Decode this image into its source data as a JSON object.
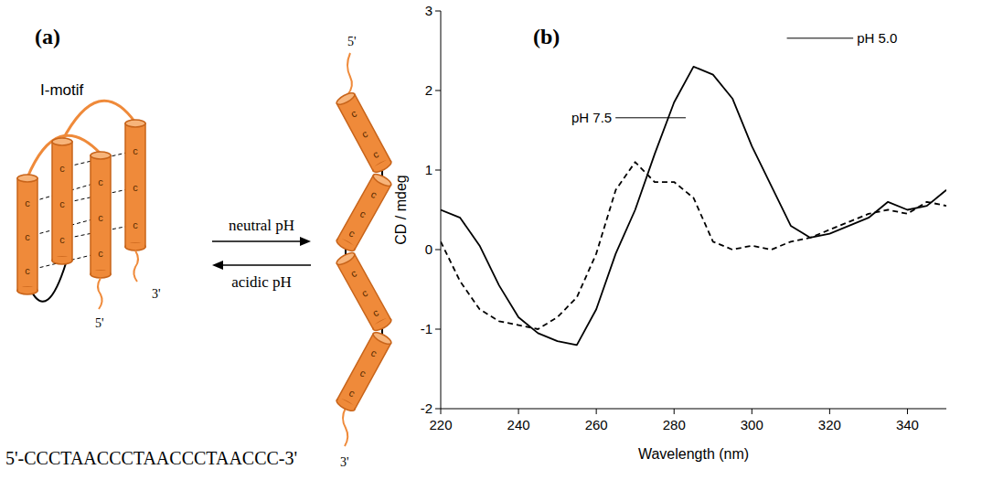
{
  "diagram": {
    "panel_label": "(a)",
    "title": "I-motif",
    "forward": "neutral pH",
    "backward": "acidic pH",
    "sequence": "5'-CCCTAACCCTAACCCTAACCC-3'",
    "base": "c",
    "five_prime": "5'",
    "three_prime": "3'"
  },
  "chart_data": {
    "panel_label": "(b)",
    "type": "line",
    "x_label": "Wavelength (nm)",
    "y_label": "CD / mdeg",
    "x": [
      220,
      225,
      230,
      235,
      240,
      245,
      250,
      255,
      260,
      265,
      270,
      275,
      280,
      285,
      290,
      295,
      300,
      305,
      310,
      315,
      320,
      325,
      330,
      335,
      340,
      345,
      350
    ],
    "series": [
      {
        "name": "pH 5.0",
        "color": "#000000",
        "line_style": "solid",
        "values": [
          0.5,
          0.4,
          0.05,
          -0.45,
          -0.85,
          -1.05,
          -1.15,
          -1.2,
          -0.75,
          -0.05,
          0.5,
          1.2,
          1.85,
          2.3,
          2.2,
          1.9,
          1.3,
          0.8,
          0.3,
          0.15,
          0.2,
          0.3,
          0.4,
          0.6,
          0.5,
          0.55,
          0.75
        ]
      },
      {
        "name": "pH 7.5",
        "color": "#000000",
        "line_style": "dashed",
        "values": [
          0.1,
          -0.4,
          -0.75,
          -0.9,
          -0.95,
          -1.0,
          -0.85,
          -0.6,
          -0.05,
          0.75,
          1.1,
          0.85,
          0.85,
          0.65,
          0.1,
          0.0,
          0.05,
          0.0,
          0.1,
          0.15,
          0.25,
          0.35,
          0.45,
          0.5,
          0.45,
          0.6,
          0.55
        ]
      }
    ],
    "xlim": [
      220,
      350
    ],
    "xticks": [
      220,
      240,
      260,
      280,
      300,
      320,
      340
    ],
    "ylim": [
      -2,
      3
    ],
    "yticks": [
      -2,
      -1,
      0,
      1,
      2,
      3
    ],
    "grid": false,
    "annotations": [
      {
        "text": "pH 5.0",
        "x": 327,
        "y": 2.6,
        "line_to": 309
      },
      {
        "text": "pH 7.5",
        "x": 264,
        "y": 1.6,
        "line_to": 283
      }
    ]
  }
}
